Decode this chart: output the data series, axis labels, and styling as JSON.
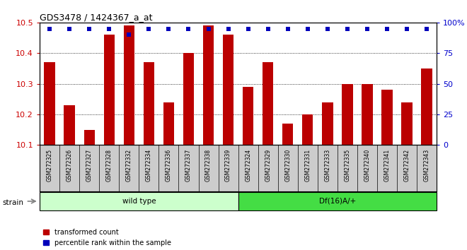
{
  "title": "GDS3478 / 1424367_a_at",
  "samples": [
    "GSM272325",
    "GSM272326",
    "GSM272327",
    "GSM272328",
    "GSM272332",
    "GSM272334",
    "GSM272336",
    "GSM272337",
    "GSM272338",
    "GSM272339",
    "GSM272324",
    "GSM272329",
    "GSM272330",
    "GSM272331",
    "GSM272333",
    "GSM272335",
    "GSM272340",
    "GSM272341",
    "GSM272342",
    "GSM272343"
  ],
  "bar_values": [
    10.37,
    10.23,
    10.15,
    10.46,
    10.49,
    10.37,
    10.24,
    10.4,
    10.49,
    10.46,
    10.29,
    10.37,
    10.17,
    10.2,
    10.24,
    10.3,
    10.3,
    10.28,
    10.24,
    10.35
  ],
  "percentile_values": [
    95,
    95,
    95,
    95,
    90,
    95,
    95,
    95,
    95,
    95,
    95,
    95,
    95,
    95,
    95,
    95,
    95,
    95,
    95,
    95
  ],
  "bar_color": "#bb0000",
  "percentile_color": "#0000bb",
  "ylim_left": [
    10.1,
    10.5
  ],
  "ylim_right": [
    0,
    100
  ],
  "yticks_left": [
    10.1,
    10.2,
    10.3,
    10.4,
    10.5
  ],
  "yticks_right": [
    0,
    25,
    50,
    75,
    100
  ],
  "ylabel_left_color": "#cc0000",
  "ylabel_right_color": "#0000cc",
  "groups": [
    {
      "label": "wild type",
      "start": 0,
      "end": 10,
      "color": "#ccffcc"
    },
    {
      "label": "Df(16)A/+",
      "start": 10,
      "end": 20,
      "color": "#44dd44"
    }
  ],
  "group_label_prefix": "strain",
  "background_color": "#ffffff",
  "plot_bg_color": "#ffffff",
  "tick_bg_color": "#cccccc",
  "grid_color": "#000000",
  "legend_items": [
    {
      "label": "transformed count",
      "color": "#bb0000"
    },
    {
      "label": "percentile rank within the sample",
      "color": "#0000bb"
    }
  ]
}
